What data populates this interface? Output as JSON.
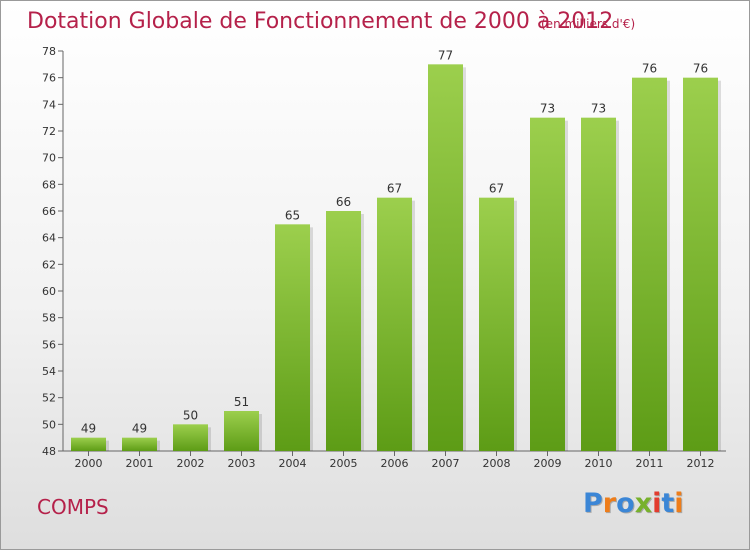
{
  "header": {
    "title": "Dotation Globale de Fonctionnement de 2000 à 2012",
    "subtitle": "(en milliers d'€)"
  },
  "footer": {
    "commune": "COMPS",
    "logo_text": "Proxiti",
    "logo_letters": [
      {
        "char": "P",
        "color": "#3b86d6"
      },
      {
        "char": "r",
        "color": "#ee7d1a"
      },
      {
        "char": "o",
        "color": "#3b86d6"
      },
      {
        "char": "x",
        "color": "#78b12c"
      },
      {
        "char": "i",
        "color": "#e23c2f"
      },
      {
        "char": "t",
        "color": "#3b86d6"
      },
      {
        "char": "i",
        "color": "#ee7d1a"
      }
    ]
  },
  "colors": {
    "bar_light": "#9ccf4d",
    "bar_dark": "#5d9c16",
    "axis": "#666666",
    "title": "#b5214a"
  },
  "chart_data": {
    "type": "bar",
    "title": "Dotation Globale de Fonctionnement de 2000 à 2012",
    "subtitle": "(en milliers d'€)",
    "categories": [
      "2000",
      "2001",
      "2002",
      "2003",
      "2004",
      "2005",
      "2006",
      "2007",
      "2008",
      "2009",
      "2010",
      "2011",
      "2012"
    ],
    "values": [
      49,
      49,
      50,
      51,
      65,
      66,
      67,
      77,
      67,
      73,
      73,
      76,
      76
    ],
    "data_labels": [
      "49",
      "49",
      "50",
      "51",
      "65",
      "66",
      "67",
      "77",
      "67",
      "73",
      "73",
      "76",
      "76"
    ],
    "ylim": [
      48,
      78
    ],
    "yticks": [
      48,
      50,
      52,
      54,
      56,
      58,
      60,
      62,
      64,
      66,
      68,
      70,
      72,
      74,
      76,
      78
    ],
    "ytick_labels": [
      "48",
      "50",
      "52",
      "54",
      "56",
      "58",
      "60",
      "62",
      "64",
      "66",
      "68",
      "70",
      "72",
      "74",
      "76",
      "78"
    ],
    "grid": false,
    "legend": "none"
  }
}
